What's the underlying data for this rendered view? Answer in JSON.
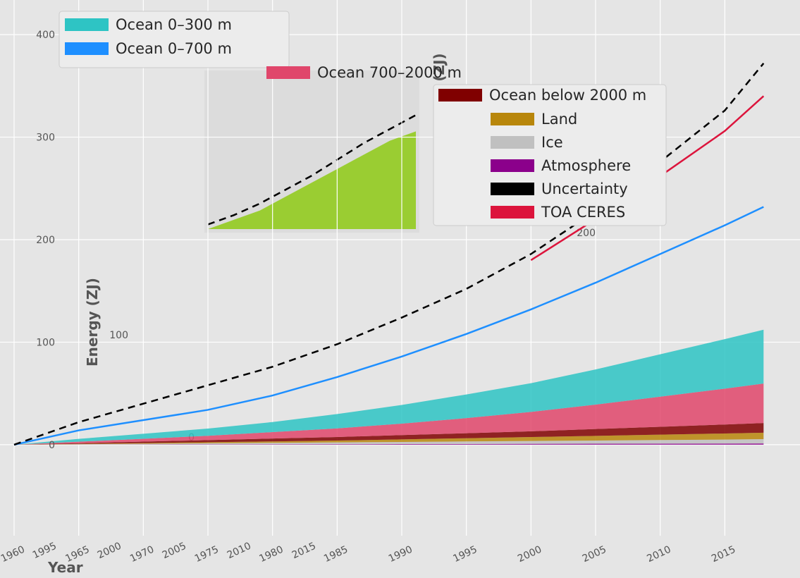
{
  "chart_data": [
    {
      "type": "area",
      "title": "",
      "xlabel": "Year",
      "ylabel": "Energy (ZJ)",
      "xlim": [
        1960,
        2020
      ],
      "ylim": [
        -20,
        420
      ],
      "grid": true,
      "legend_position": "upper-left",
      "x_ticks": [
        "1960",
        "1965",
        "1970",
        "1975",
        "1980",
        "1985",
        "1990",
        "1995",
        "2000",
        "2005",
        "2010",
        "2015"
      ],
      "y_ticks": [
        "0",
        "100",
        "200",
        "300",
        "400"
      ],
      "x": [
        1960,
        1965,
        1970,
        1975,
        1980,
        1985,
        1990,
        1995,
        2000,
        2005,
        2010,
        2015,
        2018
      ],
      "series": [
        {
          "name": "Ocean 0–300 m",
          "color": "#2ec4c4",
          "values": [
            0,
            8,
            14,
            20,
            28,
            40,
            52,
            66,
            80,
            98,
            118,
            138,
            150
          ]
        },
        {
          "name": "Ocean 0–700 m",
          "color": "#1e8fff",
          "values": [
            0,
            14,
            24,
            34,
            48,
            66,
            86,
            108,
            132,
            158,
            186,
            214,
            232
          ]
        },
        {
          "name": "Ocean 700–2000 m",
          "color": "#e0466b",
          "values": [
            0,
            4,
            8,
            12,
            18,
            24,
            32,
            42,
            54,
            68,
            84,
            100,
            110
          ]
        },
        {
          "name": "Ocean below 2000 m",
          "color": "#800000",
          "values": [
            0,
            2,
            4,
            6,
            8,
            10,
            12,
            14,
            16,
            19,
            22,
            25,
            27
          ]
        },
        {
          "name": "Land",
          "color": "#b8860b",
          "values": [
            0,
            1,
            2,
            3,
            4,
            5,
            7,
            9,
            11,
            13,
            15,
            17,
            18
          ]
        },
        {
          "name": "Ice",
          "color": "#c0c0c0",
          "values": [
            0,
            1,
            2,
            3,
            4,
            5,
            6,
            7,
            8,
            9,
            10,
            11,
            12
          ]
        },
        {
          "name": "Atmosphere",
          "color": "#8b008b",
          "values": [
            0,
            0.3,
            0.6,
            0.9,
            1.2,
            1.5,
            1.8,
            2.1,
            2.4,
            2.7,
            3.0,
            3.3,
            3.5
          ]
        },
        {
          "name": "Uncertainty",
          "color": "#000000",
          "values": [
            0,
            22,
            40,
            58,
            76,
            98,
            124,
            152,
            186,
            228,
            276,
            326,
            372
          ]
        },
        {
          "name": "TOA CERES",
          "color": "#dc143c",
          "values": [
            null,
            null,
            null,
            null,
            null,
            null,
            null,
            null,
            180,
            220,
            262,
            306,
            340
          ]
        }
      ]
    },
    {
      "type": "area",
      "title": "",
      "xlabel": "",
      "ylabel": "Energy change (ZJ)",
      "x_ticks": [
        "1995",
        "2000",
        "2005",
        "2010",
        "2015"
      ],
      "y_ticks": [
        "0",
        "100",
        "200",
        "300"
      ],
      "x": [
        1993,
        1996,
        1999,
        2002,
        2005,
        2008,
        2011,
        2014,
        2017
      ],
      "series": [
        {
          "name": "Ocean 0–700 m",
          "color": "#9acd32",
          "values": [
            0,
            20,
            40,
            70,
            100,
            130,
            160,
            190,
            210
          ]
        },
        {
          "name": "Uncertainty",
          "color": "#000000",
          "values": [
            10,
            30,
            55,
            85,
            115,
            150,
            185,
            215,
            245
          ]
        }
      ]
    }
  ]
}
